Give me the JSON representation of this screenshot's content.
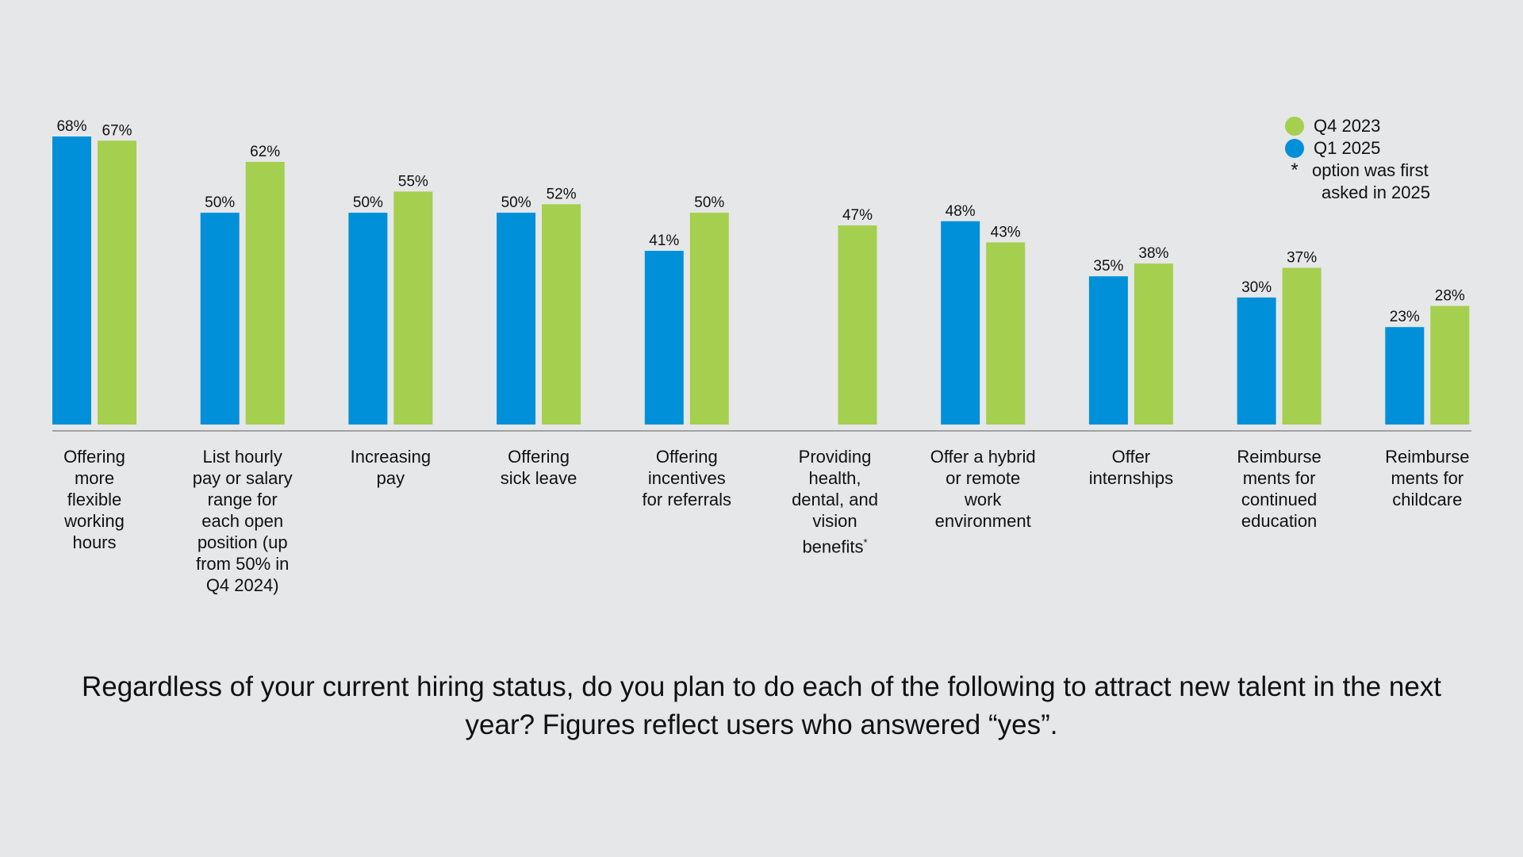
{
  "chart_data": {
    "type": "bar",
    "title": "",
    "xlabel": "",
    "ylabel": "",
    "ylim": [
      0,
      68
    ],
    "grid": false,
    "legend_position": "top-right",
    "categories": [
      "Offering more flexible working hours",
      "List hourly pay or salary range for each open position (up from 50% in Q4 2024)",
      "Increasing pay",
      "Offering sick leave",
      "Offering incentives for referrals",
      "Providing health, dental, and vision benefits*",
      "Offer a hybrid or remote work environment",
      "Offer internships",
      "Reimburse ments for continued education",
      "Reimburse ments for childcare"
    ],
    "series": [
      {
        "name": "Q1 2025",
        "color": "#0090d9",
        "values": [
          68,
          50,
          50,
          50,
          41,
          null,
          48,
          35,
          30,
          23
        ],
        "labels": [
          "68%",
          "50%",
          "50%",
          "50%",
          "41%",
          "",
          "48%",
          "35%",
          "30%",
          "23%"
        ]
      },
      {
        "name": "Q4 2023",
        "color": "#a5cf4f",
        "values": [
          67,
          62,
          55,
          52,
          50,
          47,
          43,
          38,
          37,
          28
        ],
        "labels": [
          "67%",
          "62%",
          "55%",
          "52%",
          "50%",
          "47%",
          "43%",
          "38%",
          "37%",
          "28%"
        ]
      }
    ]
  },
  "category_lines": [
    [
      "Offering",
      "more",
      "flexible",
      "working",
      "hours"
    ],
    [
      "List hourly",
      "pay or salary",
      "range for",
      "each open",
      "position (up",
      "from 50% in",
      "Q4 2024)"
    ],
    [
      "Increasing",
      "pay"
    ],
    [
      "Offering",
      "sick leave"
    ],
    [
      "Offering",
      "incentives",
      "for referrals"
    ],
    [
      "Providing",
      "health,",
      "dental, and",
      "vision",
      "benefits*"
    ],
    [
      "Offer a hybrid",
      "or remote",
      "work",
      "environment"
    ],
    [
      "Offer",
      "internships"
    ],
    [
      "Reimburse",
      "ments for",
      "continued",
      "education"
    ],
    [
      "Reimburse",
      "ments for",
      "childcare"
    ]
  ],
  "legend": {
    "q4_2023": "Q4 2023",
    "q1_2025": "Q1 2025",
    "note_symbol": "*",
    "note_line1": "option was first",
    "note_line2": "asked in 2025"
  },
  "question_text": "Regardless of your current hiring status, do you plan to do each of the following to attract new talent in the next year? Figures reflect users who answered “yes”."
}
